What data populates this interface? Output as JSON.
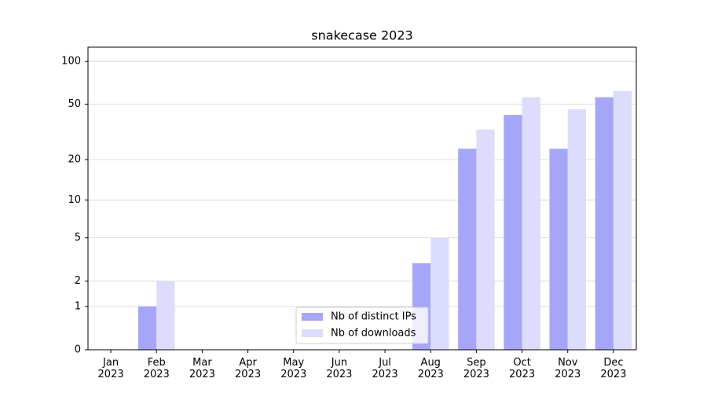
{
  "chart_data": {
    "type": "bar",
    "title": "snakecase 2023",
    "scale": "log1p",
    "categories": [
      "Jan 2023",
      "Feb 2023",
      "Mar 2023",
      "Apr 2023",
      "May 2023",
      "Jun 2023",
      "Jul 2023",
      "Aug 2023",
      "Sep 2023",
      "Oct 2023",
      "Nov 2023",
      "Dec 2023"
    ],
    "series": [
      {
        "name": "Nb of distinct IPs",
        "color": "#a6a6f8",
        "values": [
          0,
          1,
          0,
          0,
          0,
          0,
          0,
          3,
          24,
          42,
          24,
          56
        ]
      },
      {
        "name": "Nb of downloads",
        "color": "#dcdcfc",
        "values": [
          0,
          2,
          0,
          0,
          0,
          0,
          0,
          5,
          33,
          56,
          46,
          62
        ]
      }
    ],
    "ylim": [
      0,
      126
    ],
    "yticks": [
      0,
      1,
      2,
      5,
      10,
      20,
      50,
      100
    ],
    "grid": true,
    "legend": "lower center"
  }
}
